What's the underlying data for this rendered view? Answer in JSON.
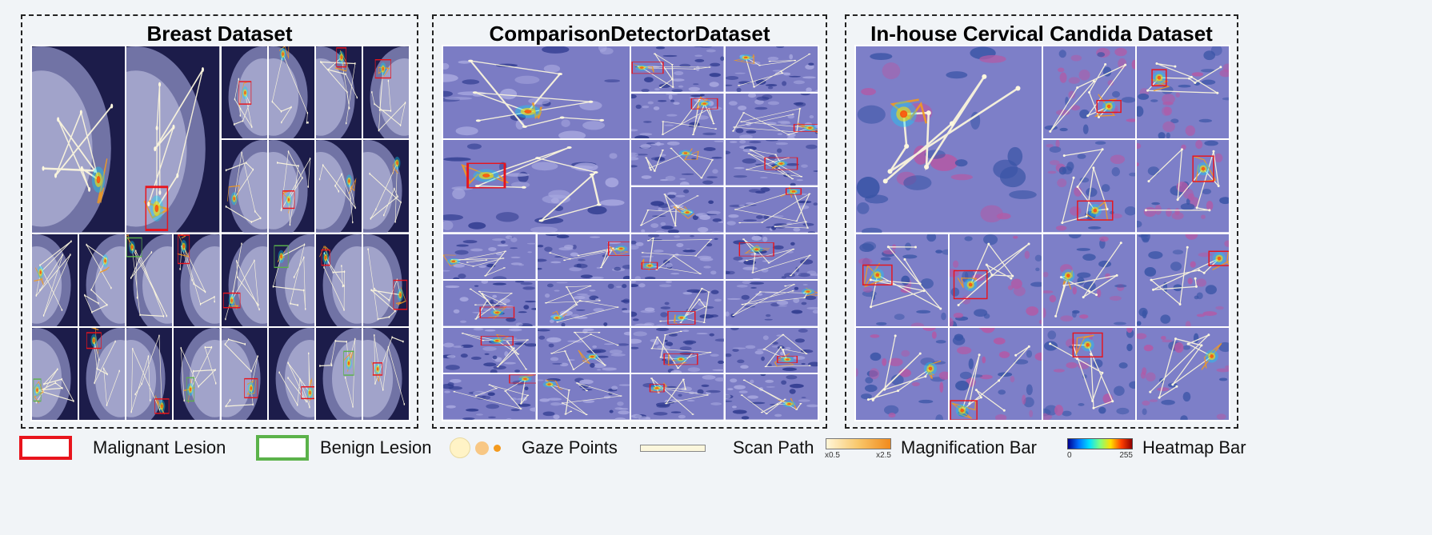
{
  "panels": [
    {
      "title": "Breast Dataset",
      "theme": "mammo",
      "cols": 8,
      "rows": 8
    },
    {
      "title": "ComparisonDetectorDataset",
      "theme": "pap",
      "cols": 8,
      "rows": 8
    },
    {
      "title": "In-house Cervical Candida Dataset",
      "theme": "cervical",
      "cols": 8,
      "rows": 8
    }
  ],
  "legend": {
    "malignant": "Malignant Lesion",
    "benign": "Benign Lesion",
    "gaze": "Gaze Points",
    "scan": "Scan Path",
    "magnification": "Magnification Bar",
    "mag_min": "x0.5",
    "mag_max": "x2.5",
    "heatmap": "Heatmap Bar",
    "heat_min": "0",
    "heat_max": "255"
  },
  "colors": {
    "malignant": "#e8141c",
    "benign": "#5bb24a",
    "scan_path": "#fbf6dc",
    "gaze_orange": "#f39a1f",
    "mammo_bg": "#1c1c4a",
    "pap_bg": "#7b7cc4",
    "cervical_bg": "#7d7fc8"
  }
}
